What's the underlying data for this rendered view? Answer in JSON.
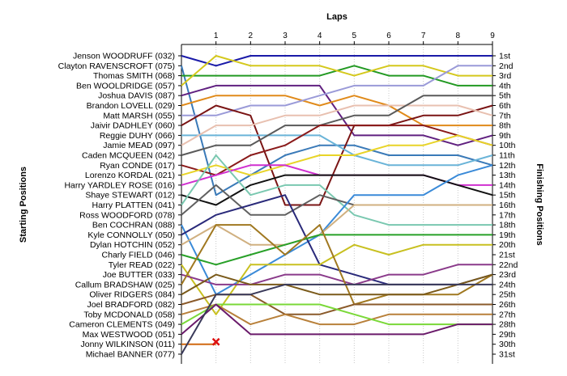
{
  "chart_data": {
    "type": "line",
    "title": "",
    "x_title": "Laps",
    "y_left_title": "Starting Positions",
    "y_right_title": "Finishing Positions",
    "laps": [
      0,
      1,
      2,
      3,
      4,
      5,
      6,
      7,
      8,
      9
    ],
    "lap_tick_labels": [
      "1",
      "2",
      "3",
      "4",
      "5",
      "6",
      "7",
      "8",
      "9"
    ],
    "grid": true,
    "finish_labels": [
      "1st",
      "2nd",
      "3rd",
      "4th",
      "5th",
      "6th",
      "7th",
      "8th",
      "9th",
      "10th",
      "11th",
      "12th",
      "13th",
      "14th",
      "15th",
      "16th",
      "17th",
      "18th",
      "19th",
      "20th",
      "21st",
      "22nd",
      "23rd",
      "24th",
      "25th",
      "26th",
      "27th",
      "28th",
      "29th",
      "30th",
      "31st"
    ],
    "retired_marker": {
      "lap": 1,
      "position": 30,
      "color": "#dd1111"
    },
    "series": [
      {
        "name": "Jenson WOODRUFF (032)",
        "color": "#1a1aa8",
        "positions": [
          1,
          2,
          1,
          1,
          1,
          1,
          1,
          1,
          1,
          1
        ]
      },
      {
        "name": "Clayton RAVENSCROFT (075)",
        "color": "#3a7ab8",
        "positions": [
          2,
          15,
          13,
          11,
          10,
          10,
          11,
          11,
          11,
          12
        ]
      },
      {
        "name": "Thomas SMITH (068)",
        "color": "#229922",
        "positions": [
          3,
          3,
          3,
          3,
          3,
          2,
          3,
          3,
          4,
          4
        ]
      },
      {
        "name": "Ben WOOLDRIDGE (057)",
        "color": "#d4c81c",
        "positions": [
          4,
          1,
          2,
          2,
          2,
          3,
          2,
          2,
          3,
          3
        ]
      },
      {
        "name": "Joshua DAVIS (087)",
        "color": "#602080",
        "positions": [
          5,
          4,
          4,
          4,
          4,
          9,
          9,
          9,
          10,
          9
        ]
      },
      {
        "name": "Brandon LOVELL (029)",
        "color": "#e08a1a",
        "positions": [
          6,
          5,
          5,
          5,
          6,
          5,
          6,
          8,
          8,
          8
        ]
      },
      {
        "name": "Matt MARSH (055)",
        "color": "#9a9ad8",
        "positions": [
          7,
          7,
          6,
          6,
          5,
          4,
          4,
          4,
          2,
          2
        ]
      },
      {
        "name": "Jaivir DADHLEY (060)",
        "color": "#7a1414",
        "positions": [
          8,
          6,
          7,
          16,
          16,
          8,
          8,
          7,
          7,
          6
        ]
      },
      {
        "name": "Reggie DUHY (066)",
        "color": "#6ab4d8",
        "positions": [
          9,
          9,
          9,
          9,
          9,
          11,
          12,
          12,
          12,
          11
        ]
      },
      {
        "name": "Jamie MEAD (097)",
        "color": "#e8c0b0",
        "positions": [
          10,
          8,
          8,
          7,
          7,
          6,
          6,
          6,
          6,
          7
        ]
      },
      {
        "name": "Caden MCQUEEN (042)",
        "color": "#5a5a5a",
        "positions": [
          11,
          10,
          10,
          8,
          8,
          7,
          7,
          5,
          5,
          5
        ]
      },
      {
        "name": "Ryan CONDE (017)",
        "color": "#8a1a1a",
        "positions": [
          12,
          13,
          11,
          10,
          8,
          8,
          8,
          8,
          9,
          10
        ]
      },
      {
        "name": "Lorenzo KORDAL (021)",
        "color": "#e8d428",
        "positions": [
          13,
          12,
          13,
          12,
          11,
          11,
          10,
          10,
          9,
          10
        ]
      },
      {
        "name": "Harry YARDLEY ROSE (016)",
        "color": "#d030d0",
        "positions": [
          14,
          13,
          12,
          12,
          13,
          13,
          13,
          13,
          14,
          14
        ]
      },
      {
        "name": "Shaye STEWART (012)",
        "color": "#111111",
        "positions": [
          15,
          16,
          14,
          13,
          13,
          13,
          13,
          13,
          14,
          15
        ]
      },
      {
        "name": "Harry PLATTEN (041)",
        "color": "#7ac8b0",
        "positions": [
          16,
          11,
          15,
          14,
          14,
          17,
          18,
          18,
          18,
          18
        ]
      },
      {
        "name": "Ross WOODFORD (078)",
        "color": "#606060",
        "positions": [
          17,
          14,
          17,
          17,
          15,
          16,
          16,
          16,
          16,
          16
        ]
      },
      {
        "name": "Ben COCHRAN (088)",
        "color": "#3a8ad8",
        "positions": [
          18,
          25,
          23,
          21,
          19,
          15,
          15,
          15,
          13,
          12
        ]
      },
      {
        "name": "Kyle CONNOLLY (050)",
        "color": "#2a2a7a",
        "positions": [
          19,
          17,
          16,
          15,
          22,
          23,
          24,
          24,
          24,
          23
        ]
      },
      {
        "name": "Dylan HOTCHIN (052)",
        "color": "#d0b080",
        "positions": [
          20,
          18,
          20,
          20,
          19,
          16,
          16,
          16,
          16,
          16
        ]
      },
      {
        "name": "Charly FIELD (046)",
        "color": "#28a028",
        "positions": [
          21,
          22,
          21,
          20,
          19,
          19,
          19,
          19,
          19,
          19
        ]
      },
      {
        "name": "Tyler READ (022)",
        "color": "#c8c020",
        "positions": [
          22,
          27,
          22,
          22,
          22,
          20,
          21,
          20,
          20,
          20
        ]
      },
      {
        "name": "Joe BUTTER (033)",
        "color": "#8a3a8a",
        "positions": [
          23,
          24,
          24,
          23,
          23,
          24,
          23,
          23,
          22,
          22
        ]
      },
      {
        "name": "Callum BRADSHAW (025)",
        "color": "#a07820",
        "positions": [
          24,
          18,
          18,
          21,
          18,
          26,
          25,
          25,
          25,
          23
        ]
      },
      {
        "name": "Oliver RIDGERS (084)",
        "color": "#7a5a1a",
        "positions": [
          25,
          23,
          24,
          24,
          25,
          25,
          25,
          25,
          24,
          23
        ]
      },
      {
        "name": "Joel BRADFORD (082)",
        "color": "#8a5a2a",
        "positions": [
          26,
          25,
          25,
          27,
          27,
          26,
          26,
          26,
          26,
          26
        ]
      },
      {
        "name": "Toby MCDONALD (058)",
        "color": "#b8803a",
        "positions": [
          27,
          26,
          28,
          27,
          28,
          28,
          27,
          27,
          27,
          27
        ]
      },
      {
        "name": "Cameron CLEMENTS (049)",
        "color": "#7ad838",
        "positions": [
          28,
          26,
          26,
          26,
          26,
          27,
          28,
          28,
          28,
          28
        ]
      },
      {
        "name": "Max WESTWOOD (051)",
        "color": "#6a1a6a",
        "positions": [
          29,
          26,
          29,
          29,
          29,
          29,
          29,
          29,
          28,
          28
        ]
      },
      {
        "name": "Jonny WILKINSON (011)",
        "color": "#d06810",
        "positions": [
          30,
          30
        ]
      },
      {
        "name": "Michael BANNER (077)",
        "color": "#3a3a5a",
        "positions": [
          31,
          25,
          25,
          24,
          24,
          24,
          24,
          24,
          24,
          24
        ]
      }
    ]
  }
}
